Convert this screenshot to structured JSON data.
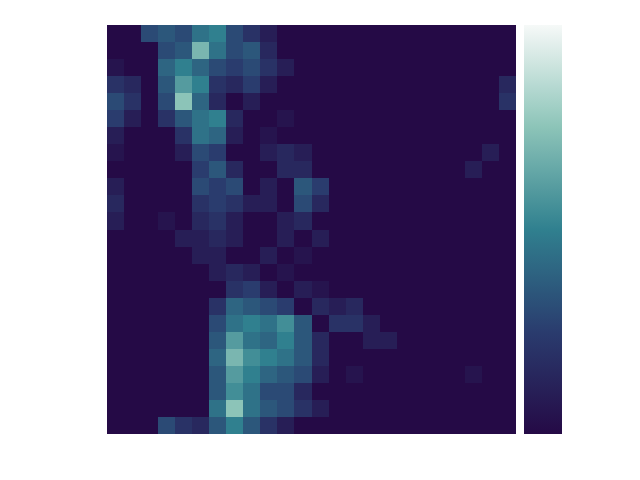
{
  "chart_data": {
    "type": "heatmap",
    "tick_labels": false,
    "color_range": [
      0,
      1
    ],
    "cells": [
      [
        0,
        0,
        0.3,
        0.35,
        0.3,
        0.45,
        0.5,
        0.3,
        0.2,
        0.1,
        0,
        0,
        0,
        0,
        0,
        0,
        0,
        0,
        0,
        0,
        0,
        0,
        0,
        0
      ],
      [
        0,
        0,
        0,
        0.3,
        0.35,
        0.7,
        0.45,
        0.3,
        0.35,
        0.15,
        0,
        0,
        0,
        0,
        0,
        0,
        0,
        0,
        0,
        0,
        0,
        0,
        0,
        0
      ],
      [
        0.05,
        0,
        0,
        0.4,
        0.5,
        0.4,
        0.3,
        0.25,
        0.3,
        0.2,
        0.1,
        0,
        0,
        0,
        0,
        0,
        0,
        0,
        0,
        0,
        0,
        0,
        0,
        0
      ],
      [
        0.2,
        0.15,
        0,
        0.35,
        0.6,
        0.5,
        0.2,
        0.15,
        0.25,
        0.1,
        0,
        0,
        0,
        0,
        0,
        0,
        0,
        0,
        0,
        0,
        0,
        0,
        0,
        0.15
      ],
      [
        0.3,
        0.2,
        0,
        0.3,
        0.75,
        0.4,
        0.15,
        0,
        0.1,
        0,
        0,
        0,
        0,
        0,
        0,
        0,
        0,
        0,
        0,
        0,
        0,
        0,
        0,
        0.2
      ],
      [
        0.25,
        0.1,
        0,
        0.2,
        0.35,
        0.45,
        0.5,
        0.15,
        0,
        0,
        0.05,
        0,
        0,
        0,
        0,
        0,
        0,
        0,
        0,
        0,
        0,
        0,
        0,
        0
      ],
      [
        0.1,
        0,
        0,
        0,
        0.2,
        0.45,
        0.4,
        0.1,
        0,
        0.05,
        0,
        0,
        0,
        0,
        0,
        0,
        0,
        0,
        0,
        0,
        0,
        0,
        0,
        0
      ],
      [
        0.05,
        0,
        0,
        0,
        0.1,
        0.3,
        0.25,
        0,
        0,
        0.1,
        0.15,
        0.1,
        0,
        0,
        0,
        0,
        0,
        0,
        0,
        0,
        0,
        0,
        0.1,
        0
      ],
      [
        0,
        0,
        0,
        0,
        0,
        0.25,
        0.35,
        0.15,
        0,
        0,
        0.15,
        0.15,
        0,
        0,
        0,
        0,
        0,
        0,
        0,
        0,
        0,
        0.1,
        0,
        0
      ],
      [
        0.1,
        0,
        0,
        0,
        0,
        0.3,
        0.25,
        0.3,
        0,
        0.1,
        0,
        0.35,
        0.25,
        0,
        0,
        0,
        0,
        0,
        0,
        0,
        0,
        0,
        0,
        0
      ],
      [
        0.15,
        0,
        0,
        0,
        0,
        0.2,
        0.25,
        0.2,
        0.1,
        0.1,
        0,
        0.3,
        0.15,
        0,
        0,
        0,
        0,
        0,
        0,
        0,
        0,
        0,
        0,
        0
      ],
      [
        0.1,
        0,
        0,
        0.05,
        0,
        0.15,
        0.2,
        0.1,
        0,
        0,
        0.1,
        0.15,
        0,
        0,
        0,
        0,
        0,
        0,
        0,
        0,
        0,
        0,
        0,
        0
      ],
      [
        0,
        0,
        0,
        0,
        0.1,
        0.1,
        0.15,
        0.1,
        0,
        0,
        0.1,
        0,
        0.1,
        0,
        0,
        0,
        0,
        0,
        0,
        0,
        0,
        0,
        0,
        0
      ],
      [
        0,
        0,
        0,
        0,
        0,
        0.1,
        0.1,
        0,
        0,
        0.1,
        0,
        0.05,
        0,
        0,
        0,
        0,
        0,
        0,
        0,
        0,
        0,
        0,
        0,
        0
      ],
      [
        0,
        0,
        0,
        0,
        0,
        0,
        0.1,
        0.15,
        0.1,
        0,
        0.05,
        0,
        0,
        0,
        0,
        0,
        0,
        0,
        0,
        0,
        0,
        0,
        0,
        0
      ],
      [
        0,
        0,
        0,
        0,
        0,
        0,
        0,
        0.2,
        0.25,
        0.1,
        0,
        0.1,
        0.05,
        0,
        0,
        0,
        0,
        0,
        0,
        0,
        0,
        0,
        0,
        0
      ],
      [
        0,
        0,
        0,
        0,
        0,
        0,
        0.2,
        0.4,
        0.35,
        0.3,
        0.25,
        0,
        0.15,
        0.1,
        0.15,
        0,
        0,
        0,
        0,
        0,
        0,
        0,
        0,
        0
      ],
      [
        0,
        0,
        0,
        0,
        0,
        0,
        0.3,
        0.45,
        0.5,
        0.45,
        0.55,
        0.35,
        0,
        0.2,
        0.2,
        0.1,
        0,
        0,
        0,
        0,
        0,
        0,
        0,
        0
      ],
      [
        0,
        0,
        0,
        0,
        0,
        0,
        0.35,
        0.6,
        0.45,
        0.4,
        0.5,
        0.35,
        0.15,
        0,
        0,
        0.1,
        0.1,
        0,
        0,
        0,
        0,
        0,
        0,
        0
      ],
      [
        0,
        0,
        0,
        0,
        0,
        0,
        0.4,
        0.7,
        0.55,
        0.5,
        0.45,
        0.35,
        0.15,
        0,
        0,
        0,
        0,
        0,
        0,
        0,
        0,
        0,
        0,
        0
      ],
      [
        0,
        0,
        0,
        0,
        0,
        0,
        0.35,
        0.6,
        0.5,
        0.4,
        0.35,
        0.3,
        0.1,
        0,
        0.05,
        0,
        0,
        0,
        0,
        0,
        0,
        0.05,
        0,
        0
      ],
      [
        0,
        0,
        0,
        0,
        0,
        0,
        0.35,
        0.55,
        0.45,
        0.3,
        0.3,
        0.15,
        0,
        0,
        0,
        0,
        0,
        0,
        0,
        0,
        0,
        0,
        0,
        0
      ],
      [
        0,
        0,
        0,
        0,
        0,
        0,
        0.45,
        0.75,
        0.45,
        0.35,
        0.3,
        0.2,
        0.1,
        0,
        0,
        0,
        0,
        0,
        0,
        0,
        0,
        0,
        0,
        0
      ],
      [
        0,
        0,
        0,
        0.3,
        0.2,
        0.15,
        0.35,
        0.5,
        0.35,
        0.2,
        0.1,
        0,
        0,
        0,
        0,
        0,
        0,
        0,
        0,
        0,
        0,
        0,
        0,
        0
      ]
    ]
  }
}
